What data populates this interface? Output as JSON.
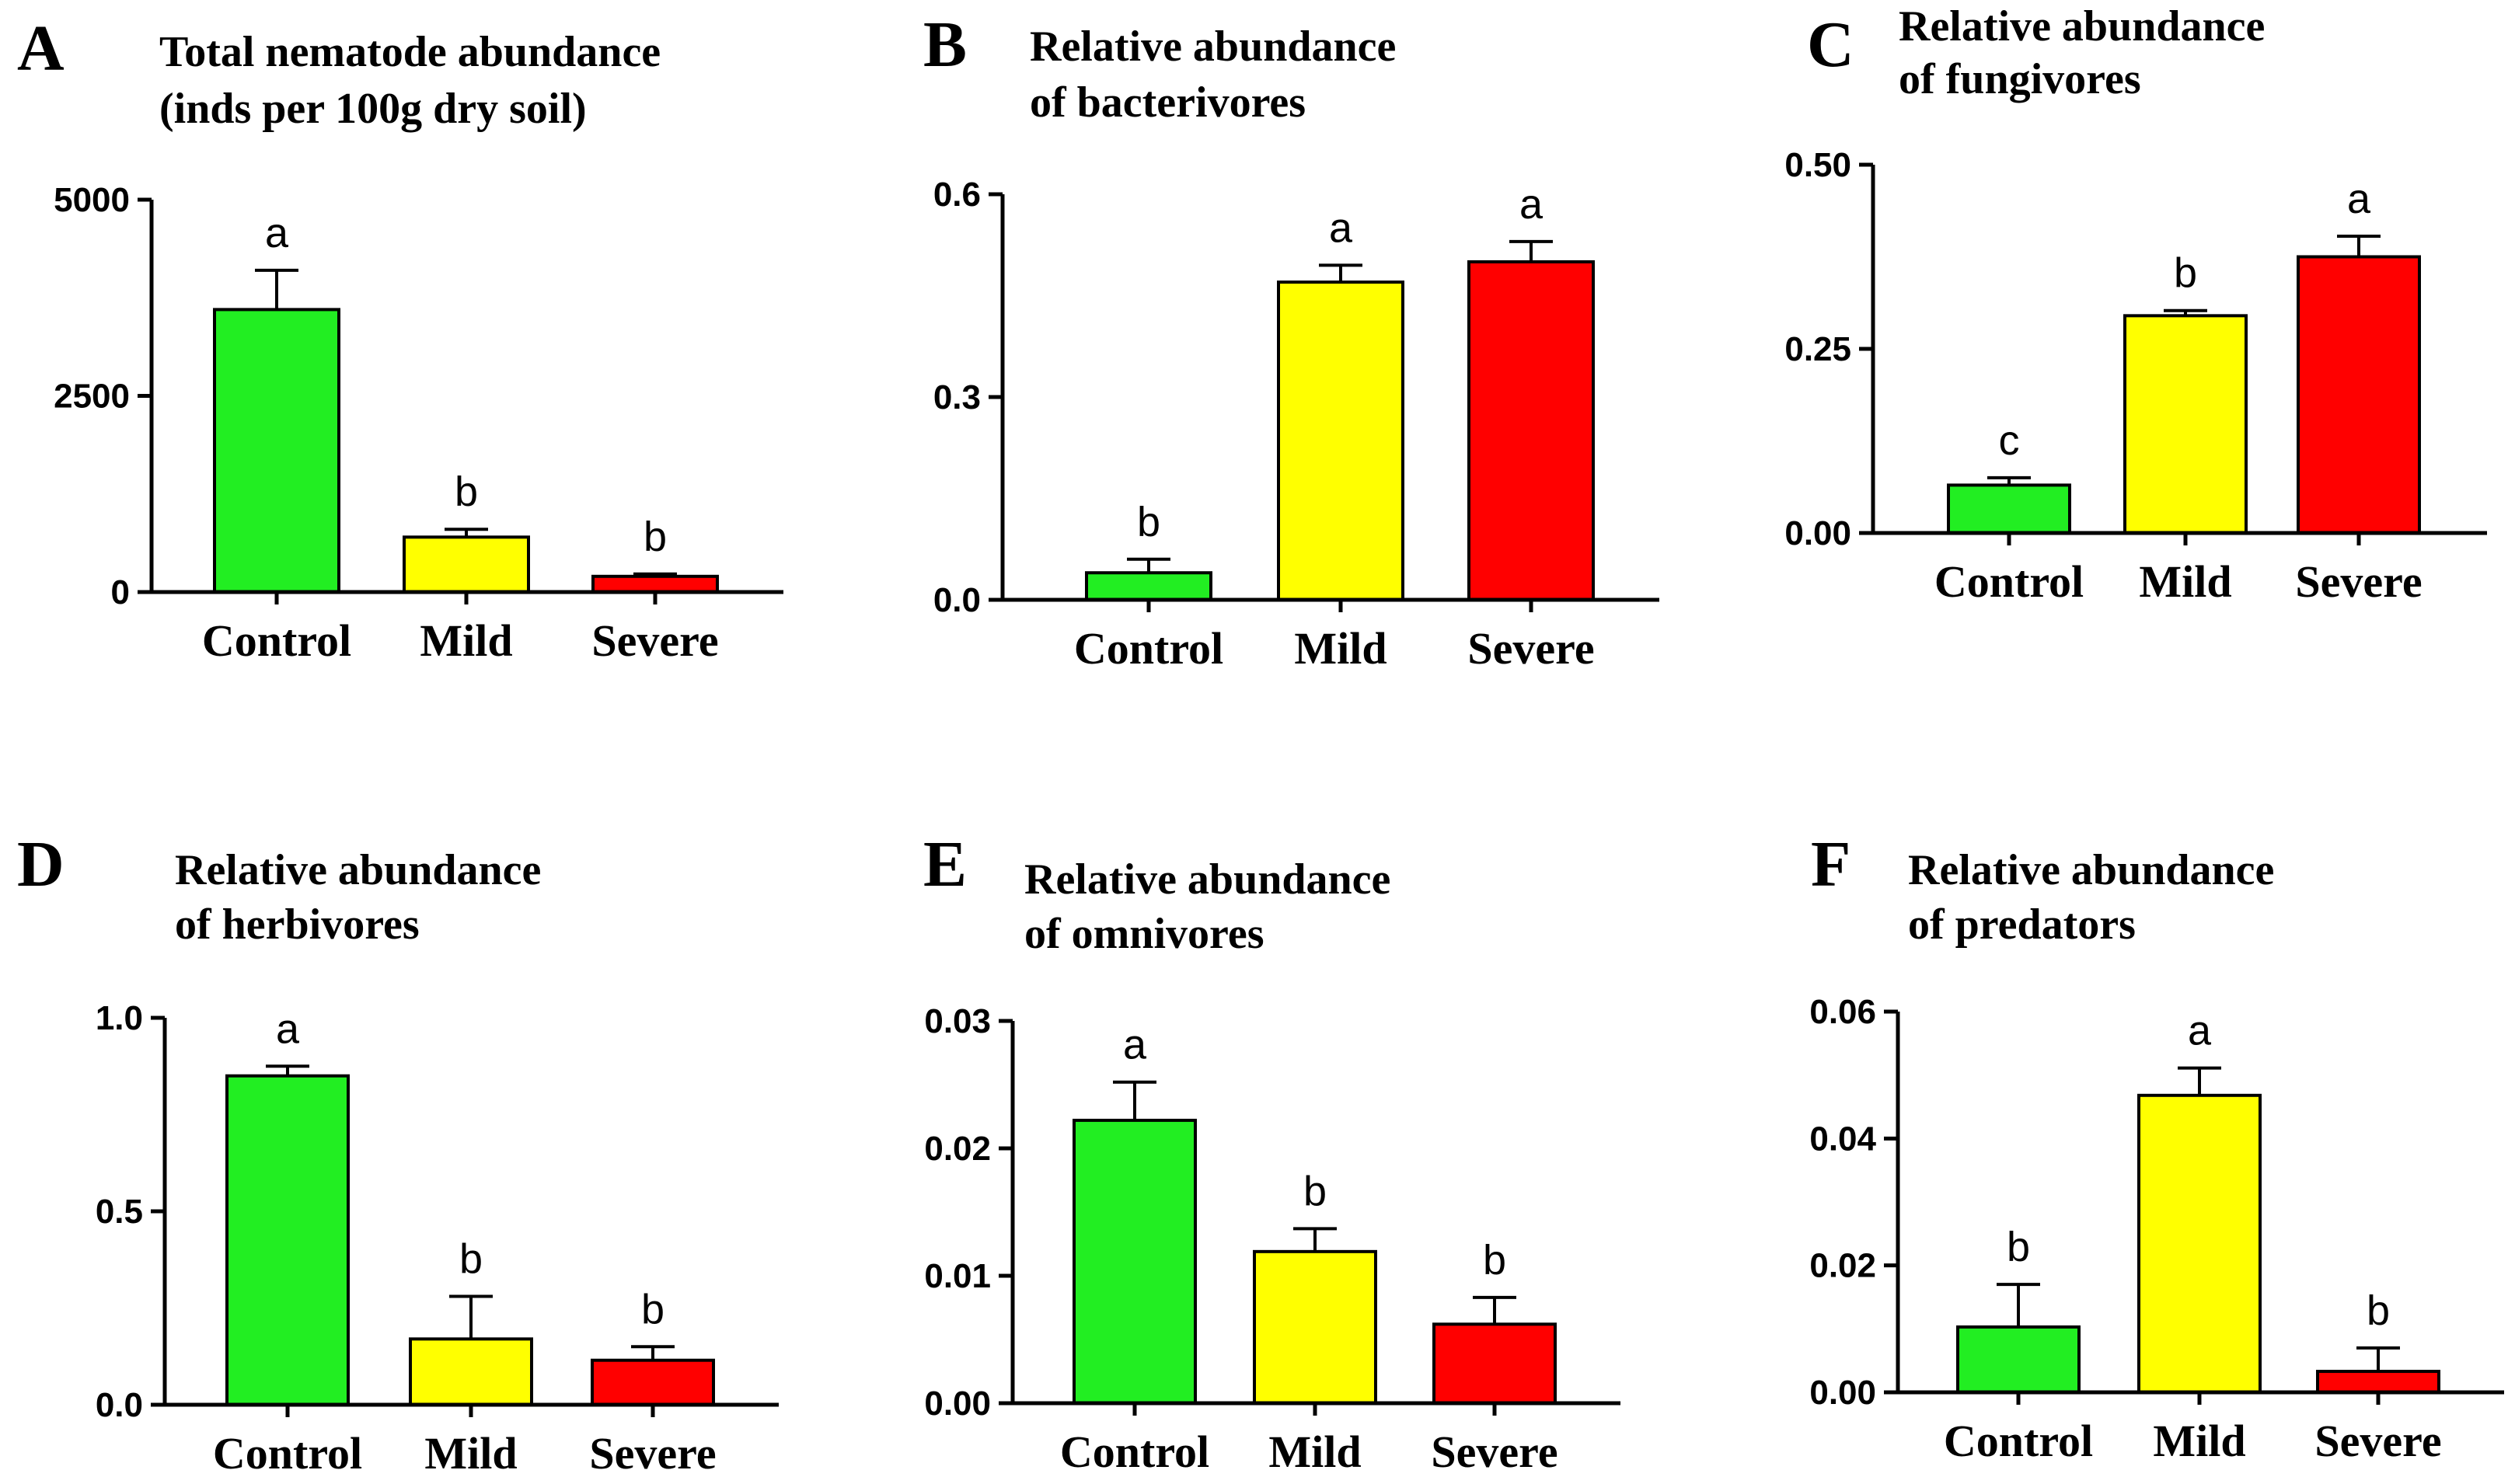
{
  "categories": [
    "Control",
    "Mild",
    "Severe"
  ],
  "colors": {
    "Control": "#22ee22",
    "Mild": "#ffff00",
    "Severe": "#ff0000"
  },
  "chart_data": [
    {
      "letter": "A",
      "type": "bar",
      "title_lines": [
        "Total nematode abundance",
        "(inds per 100g dry soil)"
      ],
      "ylim": [
        0,
        5000
      ],
      "yticks": [
        0,
        2500,
        5000
      ],
      "ytick_labels": [
        "0",
        "2500",
        "5000"
      ],
      "categories": [
        "Control",
        "Mild",
        "Severe"
      ],
      "values": [
        3600,
        700,
        200
      ],
      "errors": [
        500,
        100,
        30
      ],
      "letters": [
        "a",
        "b",
        "b"
      ]
    },
    {
      "letter": "B",
      "type": "bar",
      "title_lines": [
        "Relative abundance",
        "of bacterivores"
      ],
      "ylim": [
        0,
        0.6
      ],
      "yticks": [
        0,
        0.3,
        0.6
      ],
      "ytick_labels": [
        "0.0",
        "0.3",
        "0.6"
      ],
      "categories": [
        "Control",
        "Mild",
        "Severe"
      ],
      "values": [
        0.04,
        0.47,
        0.5
      ],
      "errors": [
        0.02,
        0.025,
        0.03
      ],
      "letters": [
        "b",
        "a",
        "a"
      ]
    },
    {
      "letter": "C",
      "type": "bar",
      "title_lines": [
        "Relative abundance",
        "of fungivores"
      ],
      "ylim": [
        0,
        0.5
      ],
      "yticks": [
        0,
        0.25,
        0.5
      ],
      "ytick_labels": [
        "0.00",
        "0.25",
        "0.50"
      ],
      "categories": [
        "Control",
        "Mild",
        "Severe"
      ],
      "values": [
        0.065,
        0.295,
        0.375
      ],
      "errors": [
        0.01,
        0.007,
        0.028
      ],
      "letters": [
        "c",
        "b",
        "a"
      ]
    },
    {
      "letter": "D",
      "type": "bar",
      "title_lines": [
        "Relative abundance",
        "of  herbivores"
      ],
      "ylim": [
        0,
        1.0
      ],
      "yticks": [
        0,
        0.5,
        1.0
      ],
      "ytick_labels": [
        "0.0",
        "0.5",
        "1.0"
      ],
      "categories": [
        "Control",
        "Mild",
        "Severe"
      ],
      "values": [
        0.85,
        0.17,
        0.115
      ],
      "errors": [
        0.025,
        0.11,
        0.035
      ],
      "letters": [
        "a",
        "b",
        "b"
      ]
    },
    {
      "letter": "E",
      "type": "bar",
      "title_lines": [
        "Relative abundance",
        "of  omnivores"
      ],
      "ylim": [
        0,
        0.03
      ],
      "yticks": [
        0,
        0.01,
        0.02,
        0.03
      ],
      "ytick_labels": [
        "0.00",
        "0.01",
        "0.02",
        "0.03"
      ],
      "categories": [
        "Control",
        "Mild",
        "Severe"
      ],
      "values": [
        0.0222,
        0.0119,
        0.0062
      ],
      "errors": [
        0.003,
        0.0018,
        0.0021
      ],
      "letters": [
        "a",
        "b",
        "b"
      ]
    },
    {
      "letter": "F",
      "type": "bar",
      "title_lines": [
        "Relative abundance",
        "of predators"
      ],
      "ylim": [
        0,
        0.06
      ],
      "yticks": [
        0,
        0.02,
        0.04,
        0.06
      ],
      "ytick_labels": [
        "0.00",
        "0.02",
        "0.04",
        "0.06"
      ],
      "categories": [
        "Control",
        "Mild",
        "Severe"
      ],
      "values": [
        0.0103,
        0.0468,
        0.0033
      ],
      "errors": [
        0.0067,
        0.0043,
        0.0037
      ],
      "letters": [
        "b",
        "a",
        "b"
      ]
    }
  ]
}
